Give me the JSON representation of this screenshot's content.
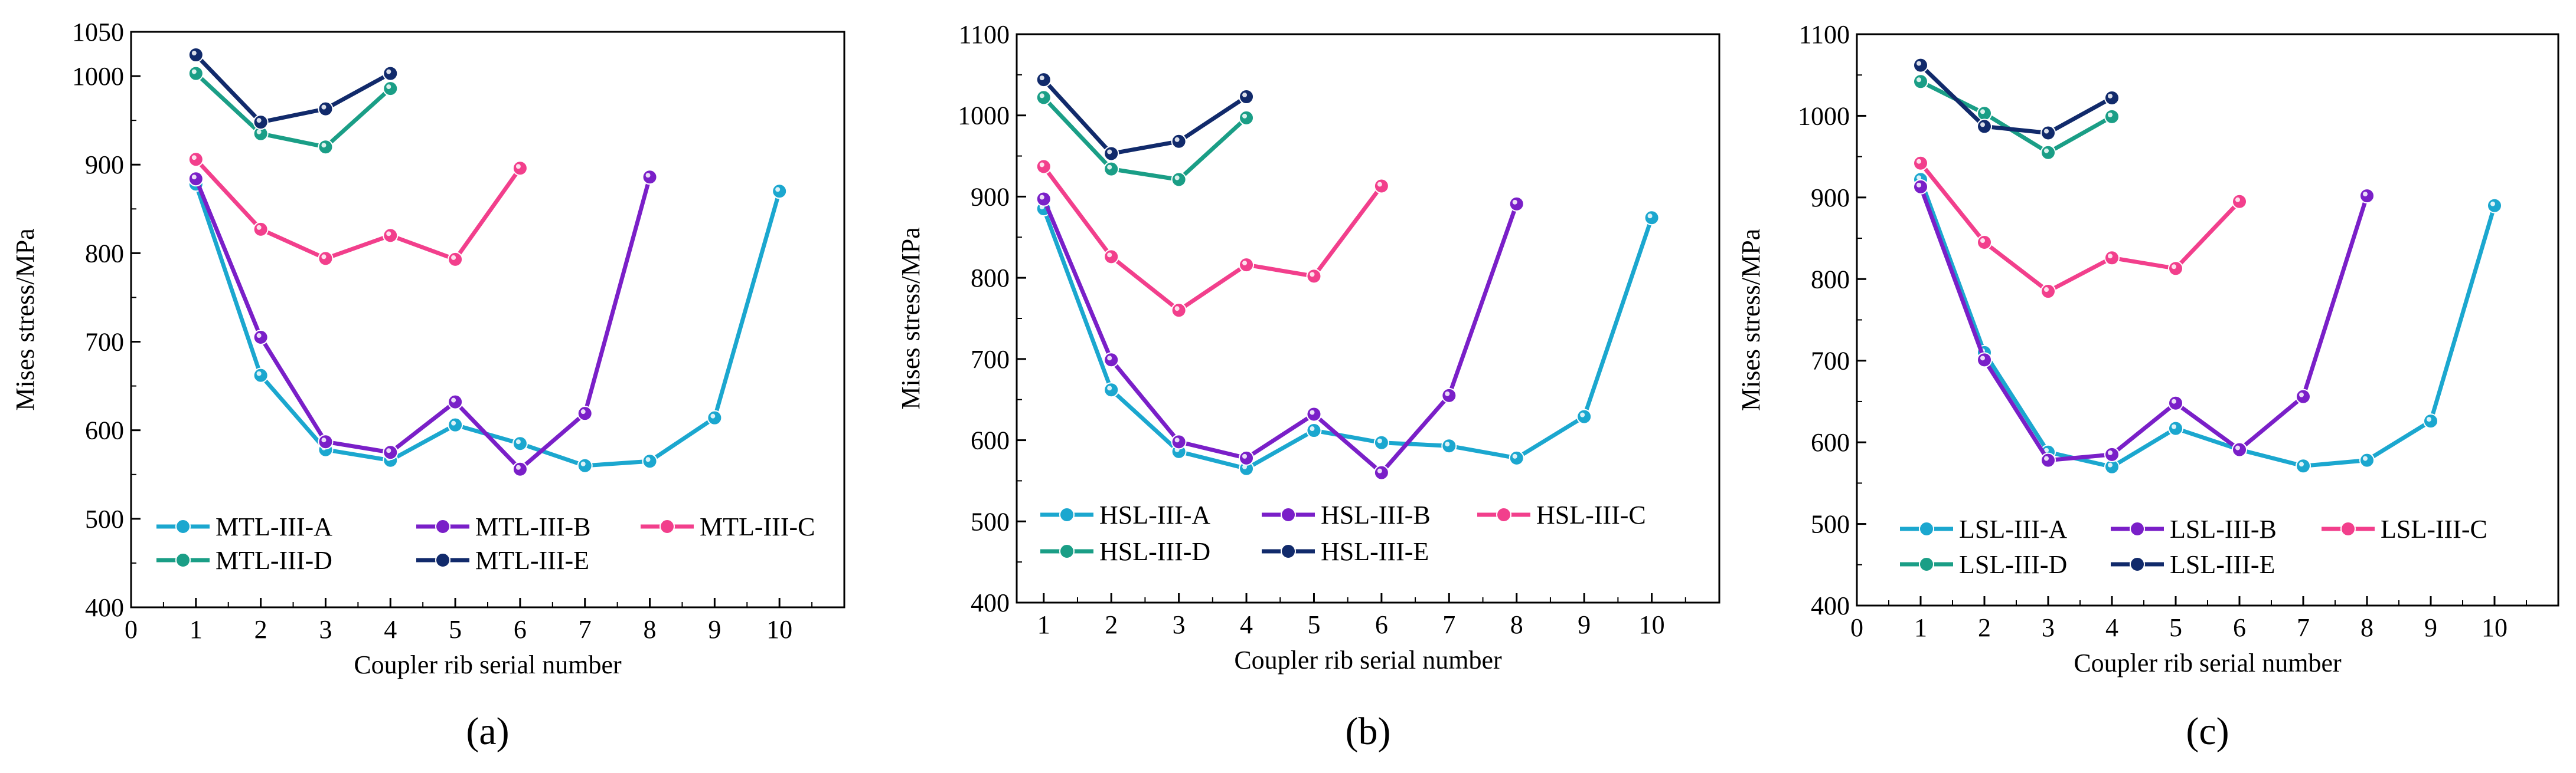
{
  "chart_data": [
    {
      "type": "line",
      "panel_label": "(a)",
      "xlabel": "Coupler rib serial number",
      "ylabel": "Mises  stress/MPa",
      "xlim": [
        0,
        11
      ],
      "ylim": [
        400,
        1050
      ],
      "xticks": [
        0,
        1,
        2,
        3,
        4,
        5,
        6,
        7,
        8,
        9,
        10
      ],
      "yticks": [
        400,
        500,
        600,
        700,
        800,
        900,
        1000,
        1050
      ],
      "legend_position": "bottom",
      "series": [
        {
          "name": "MTL-III-A",
          "color": "#1ba7cf",
          "x": [
            1,
            2,
            3,
            4,
            5,
            6,
            7,
            8,
            9,
            10
          ],
          "values": [
            878,
            662,
            578,
            566,
            606,
            585,
            560,
            565,
            614,
            870
          ]
        },
        {
          "name": "MTL-III-B",
          "color": "#7a1fc8",
          "x": [
            1,
            2,
            3,
            4,
            5,
            6,
            7,
            8
          ],
          "values": [
            884,
            705,
            587,
            575,
            632,
            556,
            619,
            886
          ]
        },
        {
          "name": "MTL-III-C",
          "color": "#f23f8c",
          "x": [
            1,
            2,
            3,
            4,
            5,
            6
          ],
          "values": [
            906,
            827,
            794,
            820,
            793,
            896
          ]
        },
        {
          "name": "MTL-III-D",
          "color": "#1a9e86",
          "x": [
            1,
            2,
            3,
            4
          ],
          "values": [
            1003,
            935,
            920,
            986
          ]
        },
        {
          "name": "MTL-III-E",
          "color": "#112a6b",
          "x": [
            1,
            2,
            3,
            4
          ],
          "values": [
            1024,
            948,
            963,
            1003
          ]
        }
      ]
    },
    {
      "type": "line",
      "panel_label": "(b)",
      "xlabel": "Coupler rib serial number",
      "ylabel": "Mises  stress/MPa",
      "xlim": [
        0.6,
        11
      ],
      "ylim": [
        400,
        1100
      ],
      "xticks": [
        1,
        2,
        3,
        4,
        5,
        6,
        7,
        8,
        9,
        10
      ],
      "yticks": [
        400,
        500,
        600,
        700,
        800,
        900,
        1000,
        1100
      ],
      "legend_position": "bottom",
      "series": [
        {
          "name": "HSL-III-A",
          "color": "#1ba7cf",
          "x": [
            1,
            2,
            3,
            4,
            5,
            6,
            7,
            8,
            9,
            10
          ],
          "values": [
            885,
            662,
            586,
            565,
            612,
            597,
            593,
            578,
            629,
            874
          ]
        },
        {
          "name": "HSL-III-B",
          "color": "#7a1fc8",
          "x": [
            1,
            2,
            3,
            4,
            5,
            6,
            7,
            8
          ],
          "values": [
            897,
            699,
            598,
            578,
            632,
            560,
            655,
            891
          ]
        },
        {
          "name": "HSL-III-C",
          "color": "#f23f8c",
          "x": [
            1,
            2,
            3,
            4,
            5,
            6
          ],
          "values": [
            937,
            826,
            760,
            816,
            802,
            913
          ]
        },
        {
          "name": "HSL-III-D",
          "color": "#1a9e86",
          "x": [
            1,
            2,
            3,
            4
          ],
          "values": [
            1022,
            934,
            921,
            997
          ]
        },
        {
          "name": "HSL-III-E",
          "color": "#112a6b",
          "x": [
            1,
            2,
            3,
            4
          ],
          "values": [
            1044,
            953,
            968,
            1023
          ]
        }
      ]
    },
    {
      "type": "line",
      "panel_label": "(c)",
      "xlabel": "Coupler rib serial number",
      "ylabel": "Mises  stress/MPa",
      "xlim": [
        0,
        11
      ],
      "ylim": [
        400,
        1100
      ],
      "xticks": [
        0,
        1,
        2,
        3,
        4,
        5,
        6,
        7,
        8,
        9,
        10
      ],
      "yticks": [
        400,
        500,
        600,
        700,
        800,
        900,
        1000,
        1100
      ],
      "legend_position": "bottom",
      "series": [
        {
          "name": "LSL-III-A",
          "color": "#1ba7cf",
          "x": [
            1,
            2,
            3,
            4,
            5,
            6,
            7,
            8,
            9,
            10
          ],
          "values": [
            922,
            710,
            588,
            570,
            617,
            591,
            571,
            578,
            626,
            890
          ]
        },
        {
          "name": "LSL-III-B",
          "color": "#7a1fc8",
          "x": [
            1,
            2,
            3,
            4,
            5,
            6,
            7,
            8
          ],
          "values": [
            913,
            701,
            578,
            585,
            648,
            591,
            656,
            902
          ]
        },
        {
          "name": "LSL-III-C",
          "color": "#f23f8c",
          "x": [
            1,
            2,
            3,
            4,
            5,
            6
          ],
          "values": [
            942,
            845,
            785,
            826,
            813,
            895
          ]
        },
        {
          "name": "LSL-III-D",
          "color": "#1a9e86",
          "x": [
            1,
            2,
            3,
            4
          ],
          "values": [
            1042,
            1003,
            955,
            999
          ]
        },
        {
          "name": "LSL-III-E",
          "color": "#112a6b",
          "x": [
            1,
            2,
            3,
            4
          ],
          "values": [
            1062,
            987,
            979,
            1022
          ]
        }
      ]
    }
  ]
}
